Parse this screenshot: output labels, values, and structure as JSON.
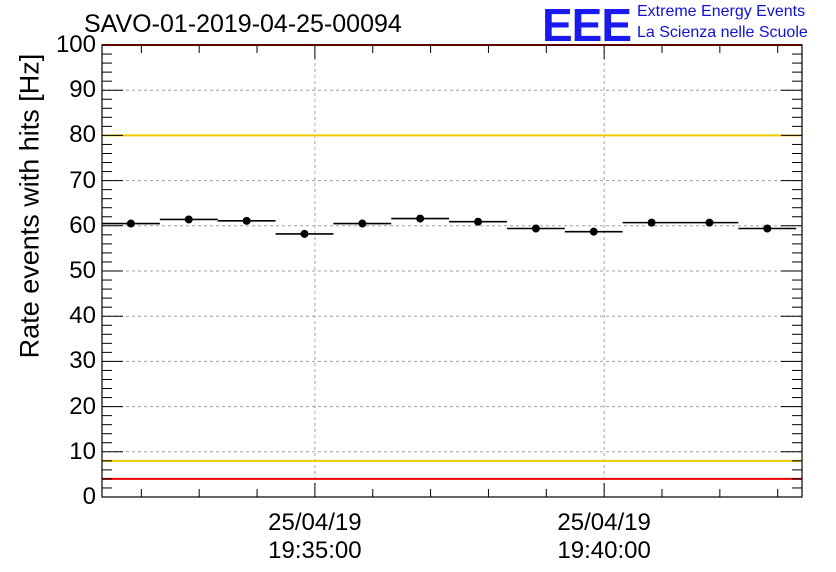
{
  "chart_data": {
    "type": "scatter",
    "title": "SAVO-01-2019-04-25-00094",
    "xlabel": "",
    "ylabel": "Rate events with hits [Hz]",
    "ylim": [
      0,
      100
    ],
    "yticks": [
      "0",
      "10",
      "20",
      "30",
      "40",
      "50",
      "60",
      "70",
      "80",
      "90",
      "100"
    ],
    "xtick_dates": [
      "25/04/19",
      "25/04/19"
    ],
    "xtick_times": [
      "19:35:00",
      "19:40:00"
    ],
    "xrange_minutes": [
      -3.68,
      8.42
    ],
    "xtick_minutes": [
      0,
      5
    ],
    "bin_width_minutes": 1,
    "grid": true,
    "series": [
      {
        "name": "Rate",
        "x_minutes": [
          -3.18,
          -2.18,
          -1.18,
          -0.18,
          0.82,
          1.82,
          2.82,
          3.82,
          4.82,
          5.82,
          6.82,
          7.82
        ],
        "values": [
          60.5,
          61.4,
          61.1,
          58.2,
          60.5,
          61.6,
          60.9,
          59.4,
          58.7,
          60.7,
          60.7,
          59.4
        ]
      }
    ],
    "reference_lines": [
      {
        "value": 100,
        "color": "#ee0000"
      },
      {
        "value": 80,
        "color": "#f0c800"
      },
      {
        "value": 8,
        "color": "#f0c800"
      },
      {
        "value": 4,
        "color": "#ee0000"
      }
    ]
  },
  "logo": {
    "mark": "EEE",
    "line1": "Extreme Energy Events",
    "line2": "La Scienza nelle Scuole",
    "color": "#1a1aee"
  }
}
